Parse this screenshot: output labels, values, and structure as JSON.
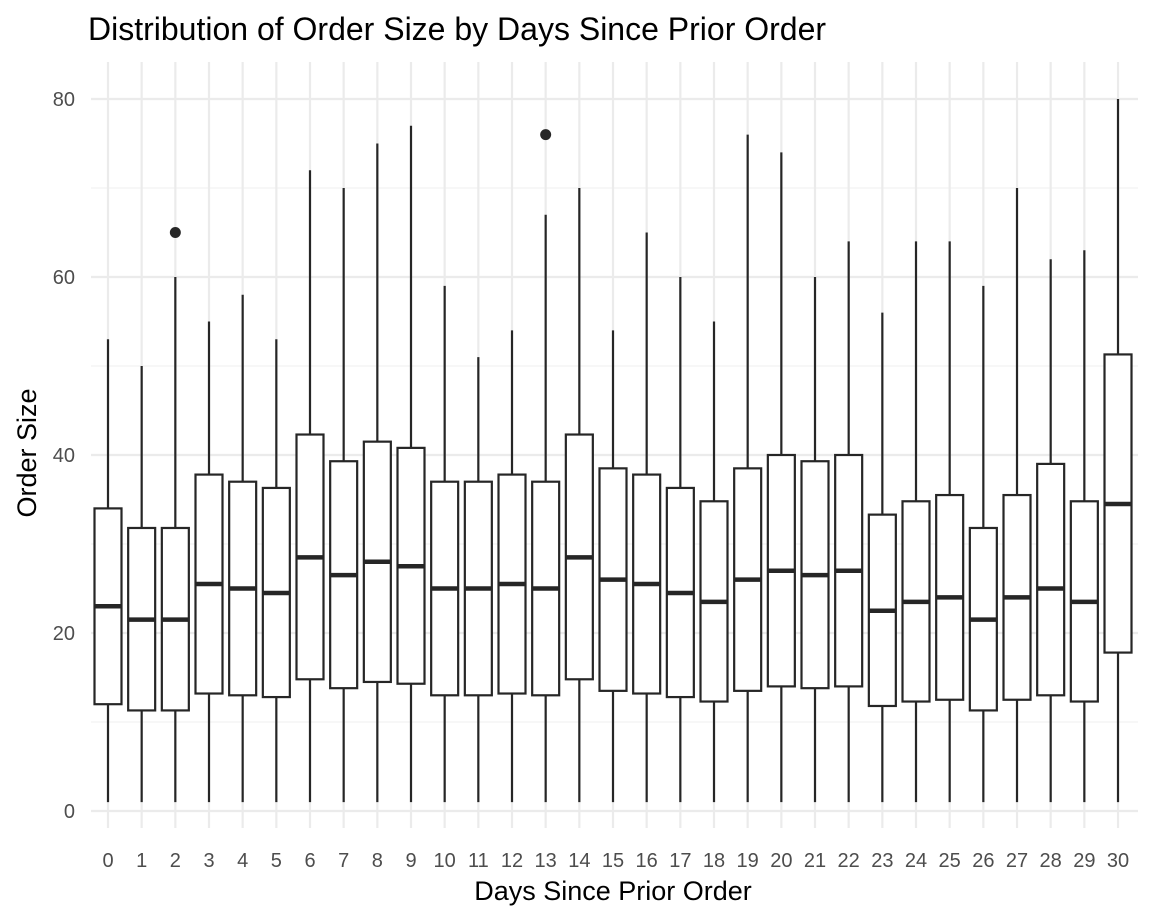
{
  "chart_data": {
    "type": "boxplot",
    "title": "Distribution of Order Size by Days Since Prior Order",
    "xlabel": "Days Since Prior Order",
    "ylabel": "Order Size",
    "ylim": [
      -2,
      84
    ],
    "yticks": [
      0,
      20,
      40,
      60,
      80
    ],
    "grid": true,
    "categories": [
      "0",
      "1",
      "2",
      "3",
      "4",
      "5",
      "6",
      "7",
      "8",
      "9",
      "10",
      "11",
      "12",
      "13",
      "14",
      "15",
      "16",
      "17",
      "18",
      "19",
      "20",
      "21",
      "22",
      "23",
      "24",
      "25",
      "26",
      "27",
      "28",
      "29",
      "30"
    ],
    "boxes": [
      {
        "x": "0",
        "min": 1,
        "q1": 12,
        "median": 23,
        "q3": 34,
        "max": 53,
        "outliers": []
      },
      {
        "x": "1",
        "min": 1,
        "q1": 11.3,
        "median": 21.5,
        "q3": 31.8,
        "max": 50,
        "outliers": []
      },
      {
        "x": "2",
        "min": 1,
        "q1": 11.3,
        "median": 21.5,
        "q3": 31.8,
        "max": 60,
        "outliers": [
          65
        ]
      },
      {
        "x": "3",
        "min": 1,
        "q1": 13.2,
        "median": 25.5,
        "q3": 37.8,
        "max": 55,
        "outliers": []
      },
      {
        "x": "4",
        "min": 1,
        "q1": 13,
        "median": 25,
        "q3": 37,
        "max": 58,
        "outliers": []
      },
      {
        "x": "5",
        "min": 1,
        "q1": 12.8,
        "median": 24.5,
        "q3": 36.3,
        "max": 53,
        "outliers": []
      },
      {
        "x": "6",
        "min": 1,
        "q1": 14.8,
        "median": 28.5,
        "q3": 42.3,
        "max": 72,
        "outliers": []
      },
      {
        "x": "7",
        "min": 1,
        "q1": 13.8,
        "median": 26.5,
        "q3": 39.3,
        "max": 70,
        "outliers": []
      },
      {
        "x": "8",
        "min": 1,
        "q1": 14.5,
        "median": 28,
        "q3": 41.5,
        "max": 75,
        "outliers": []
      },
      {
        "x": "9",
        "min": 1,
        "q1": 14.3,
        "median": 27.5,
        "q3": 40.8,
        "max": 77,
        "outliers": []
      },
      {
        "x": "10",
        "min": 1,
        "q1": 13,
        "median": 25,
        "q3": 37,
        "max": 59,
        "outliers": []
      },
      {
        "x": "11",
        "min": 1,
        "q1": 13,
        "median": 25,
        "q3": 37,
        "max": 51,
        "outliers": []
      },
      {
        "x": "12",
        "min": 1,
        "q1": 13.2,
        "median": 25.5,
        "q3": 37.8,
        "max": 54,
        "outliers": []
      },
      {
        "x": "13",
        "min": 1,
        "q1": 13,
        "median": 25,
        "q3": 37,
        "max": 67,
        "outliers": [
          76
        ]
      },
      {
        "x": "14",
        "min": 1,
        "q1": 14.8,
        "median": 28.5,
        "q3": 42.3,
        "max": 70,
        "outliers": []
      },
      {
        "x": "15",
        "min": 1,
        "q1": 13.5,
        "median": 26,
        "q3": 38.5,
        "max": 54,
        "outliers": []
      },
      {
        "x": "16",
        "min": 1,
        "q1": 13.2,
        "median": 25.5,
        "q3": 37.8,
        "max": 65,
        "outliers": []
      },
      {
        "x": "17",
        "min": 1,
        "q1": 12.8,
        "median": 24.5,
        "q3": 36.3,
        "max": 60,
        "outliers": []
      },
      {
        "x": "18",
        "min": 1,
        "q1": 12.3,
        "median": 23.5,
        "q3": 34.8,
        "max": 55,
        "outliers": []
      },
      {
        "x": "19",
        "min": 1,
        "q1": 13.5,
        "median": 26,
        "q3": 38.5,
        "max": 76,
        "outliers": []
      },
      {
        "x": "20",
        "min": 1,
        "q1": 14,
        "median": 27,
        "q3": 40,
        "max": 74,
        "outliers": []
      },
      {
        "x": "21",
        "min": 1,
        "q1": 13.8,
        "median": 26.5,
        "q3": 39.3,
        "max": 60,
        "outliers": []
      },
      {
        "x": "22",
        "min": 1,
        "q1": 14,
        "median": 27,
        "q3": 40,
        "max": 64,
        "outliers": []
      },
      {
        "x": "23",
        "min": 1,
        "q1": 11.8,
        "median": 22.5,
        "q3": 33.3,
        "max": 56,
        "outliers": []
      },
      {
        "x": "24",
        "min": 1,
        "q1": 12.3,
        "median": 23.5,
        "q3": 34.8,
        "max": 64,
        "outliers": []
      },
      {
        "x": "25",
        "min": 1,
        "q1": 12.5,
        "median": 24,
        "q3": 35.5,
        "max": 64,
        "outliers": []
      },
      {
        "x": "26",
        "min": 1,
        "q1": 11.3,
        "median": 21.5,
        "q3": 31.8,
        "max": 59,
        "outliers": []
      },
      {
        "x": "27",
        "min": 1,
        "q1": 12.5,
        "median": 24,
        "q3": 35.5,
        "max": 70,
        "outliers": []
      },
      {
        "x": "28",
        "min": 1,
        "q1": 13,
        "median": 25,
        "q3": 39,
        "max": 62,
        "outliers": []
      },
      {
        "x": "29",
        "min": 1,
        "q1": 12.3,
        "median": 23.5,
        "q3": 34.8,
        "max": 63,
        "outliers": []
      },
      {
        "x": "30",
        "min": 1,
        "q1": 17.8,
        "median": 34.5,
        "q3": 51.3,
        "max": 80,
        "outliers": []
      }
    ]
  },
  "colors": {
    "box_stroke": "#262626",
    "box_fill": "#ffffff",
    "grid": "#ebebeb",
    "tick_text": "#4d4d4d"
  }
}
